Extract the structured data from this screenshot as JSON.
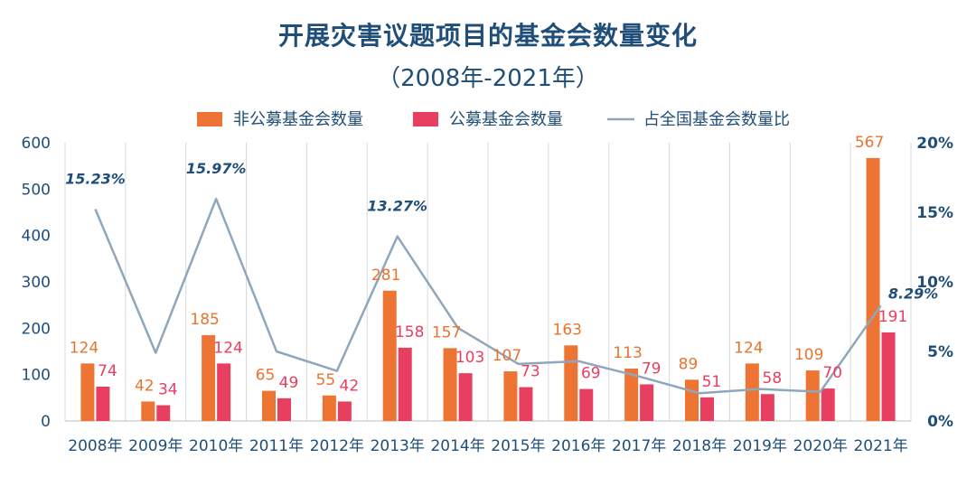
{
  "title": "开展灾害议题项目的基金会数量变化",
  "subtitle": "（2008年-2021年）",
  "legend": [
    {
      "label": "非公募基金会数量",
      "color": "#ed7432",
      "kind": "bar"
    },
    {
      "label": "公募基金会数量",
      "color": "#e83e5f",
      "kind": "bar"
    },
    {
      "label": "占全国基金会数量比",
      "color": "#8fa7bd",
      "kind": "line"
    }
  ],
  "chart_data": {
    "type": "bar",
    "categories": [
      "2008年",
      "2009年",
      "2010年",
      "2011年",
      "2012年",
      "2013年",
      "2014年",
      "2015年",
      "2016年",
      "2017年",
      "2018年",
      "2019年",
      "2020年",
      "2021年"
    ],
    "series": [
      {
        "name": "非公募基金会数量",
        "values": [
          124,
          42,
          185,
          65,
          55,
          281,
          157,
          107,
          163,
          113,
          89,
          124,
          109,
          567
        ],
        "color": "#ed7432"
      },
      {
        "name": "公募基金会数量",
        "values": [
          74,
          34,
          124,
          49,
          42,
          158,
          103,
          73,
          69,
          79,
          51,
          58,
          70,
          191
        ],
        "color": "#e83e5f"
      }
    ],
    "line_series": {
      "name": "占全国基金会数量比",
      "type": "line",
      "axis": "right",
      "values": [
        15.23,
        4.9,
        15.97,
        5.0,
        3.6,
        13.27,
        6.7,
        4.1,
        4.3,
        3.2,
        2.0,
        2.3,
        2.1,
        8.29
      ],
      "labels": [
        "15.23%",
        "",
        "15.97%",
        "",
        "",
        "13.27%",
        "",
        "",
        "",
        "",
        "",
        "",
        "",
        "8.29%"
      ],
      "color": "#8fa7bd"
    },
    "y_left": {
      "ticks": [
        "0",
        "100",
        "200",
        "300",
        "400",
        "500",
        "600"
      ],
      "ylim": [
        0,
        600
      ]
    },
    "y_right": {
      "ticks": [
        "0%",
        "5%",
        "10%",
        "15%",
        "20%"
      ],
      "ylim": [
        0,
        20
      ]
    },
    "grid": "vertical category dividers",
    "legend_position": "top"
  }
}
